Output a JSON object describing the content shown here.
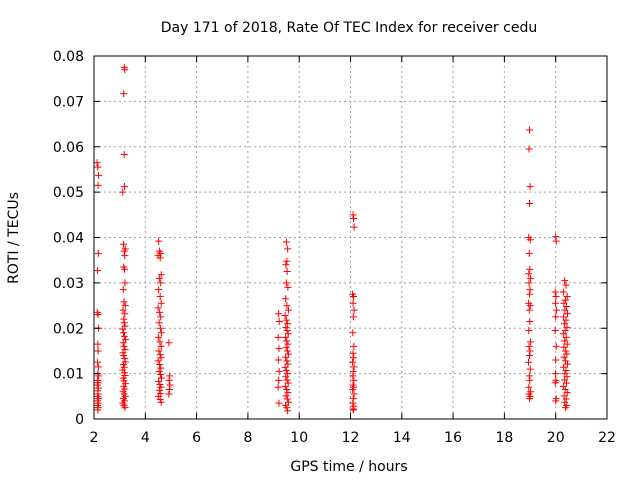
{
  "chart_data": {
    "type": "scatter",
    "title": "Day 171 of 2018, Rate Of TEC Index for receiver cedu",
    "xlabel": "GPS time / hours",
    "ylabel": "ROTI / TECUs",
    "xlim": [
      2,
      22
    ],
    "ylim": [
      0,
      0.08
    ],
    "x_ticks": [
      2,
      4,
      6,
      8,
      10,
      12,
      14,
      16,
      18,
      20,
      22
    ],
    "x_tick_labels": [
      "2",
      "4",
      "6",
      "8",
      "10",
      "12",
      "14",
      "16",
      "18",
      "20",
      "22"
    ],
    "y_ticks": [
      0,
      0.01,
      0.02,
      0.03,
      0.04,
      0.05,
      0.06,
      0.07,
      0.08
    ],
    "y_tick_labels": [
      "0",
      "0.01",
      "0.02",
      "0.03",
      "0.04",
      "0.05",
      "0.06",
      "0.07",
      "0.08"
    ],
    "grid": true,
    "marker": "+",
    "color": "#ff0000",
    "series": [
      {
        "name": "ROTI",
        "points": [
          [
            2.12,
            0.0565
          ],
          [
            2.15,
            0.0555
          ],
          [
            2.18,
            0.0537
          ],
          [
            2.16,
            0.0515
          ],
          [
            2.17,
            0.0365
          ],
          [
            2.14,
            0.0327
          ],
          [
            2.13,
            0.0235
          ],
          [
            2.16,
            0.023
          ],
          [
            2.18,
            0.02
          ],
          [
            2.15,
            0.0165
          ],
          [
            2.16,
            0.015
          ],
          [
            2.14,
            0.0125
          ],
          [
            2.17,
            0.0115
          ],
          [
            2.15,
            0.01
          ],
          [
            2.18,
            0.0095
          ],
          [
            2.14,
            0.0085
          ],
          [
            2.16,
            0.008
          ],
          [
            2.13,
            0.0075
          ],
          [
            2.17,
            0.0068
          ],
          [
            2.15,
            0.0062
          ],
          [
            2.16,
            0.0055
          ],
          [
            2.14,
            0.005
          ],
          [
            2.18,
            0.0045
          ],
          [
            2.15,
            0.004
          ],
          [
            2.17,
            0.0035
          ],
          [
            2.14,
            0.003
          ],
          [
            2.16,
            0.0025
          ],
          [
            2.15,
            0.002
          ],
          [
            3.18,
            0.0775
          ],
          [
            3.2,
            0.077
          ],
          [
            3.16,
            0.0717
          ],
          [
            3.18,
            0.0583
          ],
          [
            3.19,
            0.0512
          ],
          [
            3.12,
            0.05
          ],
          [
            3.15,
            0.0385
          ],
          [
            3.22,
            0.0375
          ],
          [
            3.18,
            0.037
          ],
          [
            3.2,
            0.036
          ],
          [
            3.16,
            0.0335
          ],
          [
            3.19,
            0.033
          ],
          [
            3.21,
            0.03
          ],
          [
            3.14,
            0.0285
          ],
          [
            3.17,
            0.0258
          ],
          [
            3.22,
            0.025
          ],
          [
            3.13,
            0.024
          ],
          [
            3.2,
            0.0232
          ],
          [
            3.16,
            0.022
          ],
          [
            3.18,
            0.0212
          ],
          [
            3.21,
            0.0205
          ],
          [
            3.12,
            0.0198
          ],
          [
            3.15,
            0.019
          ],
          [
            3.19,
            0.0182
          ],
          [
            3.23,
            0.0175
          ],
          [
            3.14,
            0.0168
          ],
          [
            3.17,
            0.016
          ],
          [
            3.21,
            0.0153
          ],
          [
            3.13,
            0.0146
          ],
          [
            3.16,
            0.014
          ],
          [
            3.2,
            0.0133
          ],
          [
            3.22,
            0.0126
          ],
          [
            3.15,
            0.012
          ],
          [
            3.18,
            0.0114
          ],
          [
            3.12,
            0.0108
          ],
          [
            3.19,
            0.0102
          ],
          [
            3.21,
            0.0096
          ],
          [
            3.14,
            0.009
          ],
          [
            3.17,
            0.0084
          ],
          [
            3.23,
            0.0078
          ],
          [
            3.16,
            0.0072
          ],
          [
            3.2,
            0.0066
          ],
          [
            3.13,
            0.006
          ],
          [
            3.18,
            0.0055
          ],
          [
            3.22,
            0.005
          ],
          [
            3.15,
            0.0045
          ],
          [
            3.19,
            0.004
          ],
          [
            3.12,
            0.0035
          ],
          [
            3.17,
            0.003
          ],
          [
            3.21,
            0.0025
          ],
          [
            4.52,
            0.0392
          ],
          [
            4.55,
            0.037
          ],
          [
            4.6,
            0.0365
          ],
          [
            4.5,
            0.036
          ],
          [
            4.58,
            0.0355
          ],
          [
            4.62,
            0.0318
          ],
          [
            4.55,
            0.031
          ],
          [
            4.6,
            0.03
          ],
          [
            4.52,
            0.0285
          ],
          [
            4.58,
            0.027
          ],
          [
            4.62,
            0.0255
          ],
          [
            4.5,
            0.0245
          ],
          [
            4.56,
            0.0235
          ],
          [
            4.6,
            0.0225
          ],
          [
            4.54,
            0.0212
          ],
          [
            4.59,
            0.02
          ],
          [
            4.63,
            0.019
          ],
          [
            4.51,
            0.018
          ],
          [
            4.57,
            0.017
          ],
          [
            4.62,
            0.016
          ],
          [
            4.53,
            0.015
          ],
          [
            4.58,
            0.0142
          ],
          [
            4.61,
            0.0135
          ],
          [
            4.5,
            0.0128
          ],
          [
            4.56,
            0.012
          ],
          [
            4.6,
            0.0112
          ],
          [
            4.54,
            0.0105
          ],
          [
            4.59,
            0.0098
          ],
          [
            4.63,
            0.009
          ],
          [
            4.52,
            0.0083
          ],
          [
            4.57,
            0.0076
          ],
          [
            4.61,
            0.007
          ],
          [
            4.55,
            0.0063
          ],
          [
            4.6,
            0.0056
          ],
          [
            4.51,
            0.005
          ],
          [
            4.58,
            0.0043
          ],
          [
            4.62,
            0.0037
          ],
          [
            4.92,
            0.0168
          ],
          [
            4.95,
            0.0095
          ],
          [
            4.93,
            0.0085
          ],
          [
            4.96,
            0.0075
          ],
          [
            4.94,
            0.0065
          ],
          [
            4.92,
            0.0055
          ],
          [
            9.2,
            0.0232
          ],
          [
            9.22,
            0.0215
          ],
          [
            9.18,
            0.018
          ],
          [
            9.21,
            0.0155
          ],
          [
            9.19,
            0.013
          ],
          [
            9.22,
            0.0105
          ],
          [
            9.2,
            0.0085
          ],
          [
            9.18,
            0.007
          ],
          [
            9.21,
            0.0035
          ],
          [
            9.5,
            0.039
          ],
          [
            9.55,
            0.0375
          ],
          [
            9.52,
            0.0348
          ],
          [
            9.48,
            0.034
          ],
          [
            9.53,
            0.0325
          ],
          [
            9.5,
            0.03
          ],
          [
            9.56,
            0.029
          ],
          [
            9.47,
            0.0265
          ],
          [
            9.52,
            0.025
          ],
          [
            9.58,
            0.024
          ],
          [
            9.45,
            0.0228
          ],
          [
            9.5,
            0.0218
          ],
          [
            9.55,
            0.021
          ],
          [
            9.48,
            0.0202
          ],
          [
            9.53,
            0.0195
          ],
          [
            9.57,
            0.0188
          ],
          [
            9.46,
            0.018
          ],
          [
            9.51,
            0.0172
          ],
          [
            9.56,
            0.0165
          ],
          [
            9.49,
            0.0158
          ],
          [
            9.54,
            0.015
          ],
          [
            9.58,
            0.0143
          ],
          [
            9.47,
            0.0136
          ],
          [
            9.52,
            0.0128
          ],
          [
            9.56,
            0.0121
          ],
          [
            9.45,
            0.0114
          ],
          [
            9.5,
            0.0107
          ],
          [
            9.55,
            0.01
          ],
          [
            9.48,
            0.0093
          ],
          [
            9.53,
            0.0086
          ],
          [
            9.57,
            0.0079
          ],
          [
            9.46,
            0.0072
          ],
          [
            9.51,
            0.0065
          ],
          [
            9.56,
            0.0058
          ],
          [
            9.49,
            0.0051
          ],
          [
            9.54,
            0.0044
          ],
          [
            9.58,
            0.0037
          ],
          [
            9.47,
            0.003
          ],
          [
            9.52,
            0.0025
          ],
          [
            9.55,
            0.0018
          ],
          [
            12.1,
            0.045
          ],
          [
            12.12,
            0.0442
          ],
          [
            12.14,
            0.0423
          ],
          [
            12.08,
            0.0275
          ],
          [
            12.12,
            0.027
          ],
          [
            12.1,
            0.0255
          ],
          [
            12.14,
            0.024
          ],
          [
            12.11,
            0.0225
          ],
          [
            12.09,
            0.019
          ],
          [
            12.13,
            0.016
          ],
          [
            12.1,
            0.0145
          ],
          [
            12.12,
            0.0135
          ],
          [
            12.08,
            0.0125
          ],
          [
            12.14,
            0.0115
          ],
          [
            12.11,
            0.0105
          ],
          [
            12.09,
            0.0095
          ],
          [
            12.13,
            0.0085
          ],
          [
            12.1,
            0.0075
          ],
          [
            12.12,
            0.007
          ],
          [
            12.08,
            0.0065
          ],
          [
            12.14,
            0.0055
          ],
          [
            12.11,
            0.0045
          ],
          [
            12.09,
            0.0035
          ],
          [
            12.13,
            0.0028
          ],
          [
            12.1,
            0.0022
          ],
          [
            12.12,
            0.002
          ],
          [
            18.98,
            0.0637
          ],
          [
            18.96,
            0.0595
          ],
          [
            19.0,
            0.0512
          ],
          [
            18.98,
            0.0475
          ],
          [
            18.95,
            0.04
          ],
          [
            19.01,
            0.0395
          ],
          [
            18.97,
            0.0365
          ],
          [
            18.99,
            0.033
          ],
          [
            18.95,
            0.032
          ],
          [
            19.02,
            0.031
          ],
          [
            18.96,
            0.03
          ],
          [
            19.0,
            0.0285
          ],
          [
            18.98,
            0.0275
          ],
          [
            18.94,
            0.0255
          ],
          [
            19.01,
            0.025
          ],
          [
            18.97,
            0.024
          ],
          [
            18.99,
            0.0215
          ],
          [
            18.95,
            0.0195
          ],
          [
            19.02,
            0.017
          ],
          [
            18.96,
            0.016
          ],
          [
            19.0,
            0.015
          ],
          [
            18.98,
            0.014
          ],
          [
            18.94,
            0.0125
          ],
          [
            19.01,
            0.011
          ],
          [
            18.97,
            0.0095
          ],
          [
            18.99,
            0.0085
          ],
          [
            18.95,
            0.007
          ],
          [
            19.02,
            0.006
          ],
          [
            18.96,
            0.0055
          ],
          [
            19.0,
            0.005
          ],
          [
            18.98,
            0.0045
          ],
          [
            20.0,
            0.0402
          ],
          [
            20.02,
            0.0392
          ],
          [
            19.98,
            0.028
          ],
          [
            20.01,
            0.027
          ],
          [
            19.99,
            0.0255
          ],
          [
            20.03,
            0.024
          ],
          [
            20.0,
            0.0225
          ],
          [
            19.98,
            0.0195
          ],
          [
            20.02,
            0.016
          ],
          [
            20.0,
            0.013
          ],
          [
            19.99,
            0.01
          ],
          [
            20.01,
            0.0085
          ],
          [
            19.98,
            0.008
          ],
          [
            20.02,
            0.0045
          ],
          [
            20.0,
            0.004
          ],
          [
            20.35,
            0.0305
          ],
          [
            20.4,
            0.0295
          ],
          [
            20.3,
            0.028
          ],
          [
            20.45,
            0.027
          ],
          [
            20.38,
            0.0262
          ],
          [
            20.32,
            0.0255
          ],
          [
            20.42,
            0.0248
          ],
          [
            20.36,
            0.024
          ],
          [
            20.46,
            0.0232
          ],
          [
            20.31,
            0.0225
          ],
          [
            20.4,
            0.0218
          ],
          [
            20.34,
            0.021
          ],
          [
            20.44,
            0.0202
          ],
          [
            20.37,
            0.0195
          ],
          [
            20.3,
            0.0188
          ],
          [
            20.41,
            0.018
          ],
          [
            20.35,
            0.0172
          ],
          [
            20.45,
            0.0165
          ],
          [
            20.32,
            0.0158
          ],
          [
            20.39,
            0.015
          ],
          [
            20.43,
            0.0143
          ],
          [
            20.33,
            0.0136
          ],
          [
            20.38,
            0.0128
          ],
          [
            20.46,
            0.0121
          ],
          [
            20.31,
            0.0114
          ],
          [
            20.4,
            0.0107
          ],
          [
            20.36,
            0.01
          ],
          [
            20.44,
            0.0093
          ],
          [
            20.34,
            0.0086
          ],
          [
            20.42,
            0.0079
          ],
          [
            20.3,
            0.0072
          ],
          [
            20.37,
            0.0065
          ],
          [
            20.45,
            0.0058
          ],
          [
            20.33,
            0.0051
          ],
          [
            20.41,
            0.0044
          ],
          [
            20.35,
            0.0037
          ],
          [
            20.43,
            0.003
          ],
          [
            20.38,
            0.0025
          ]
        ]
      }
    ]
  }
}
